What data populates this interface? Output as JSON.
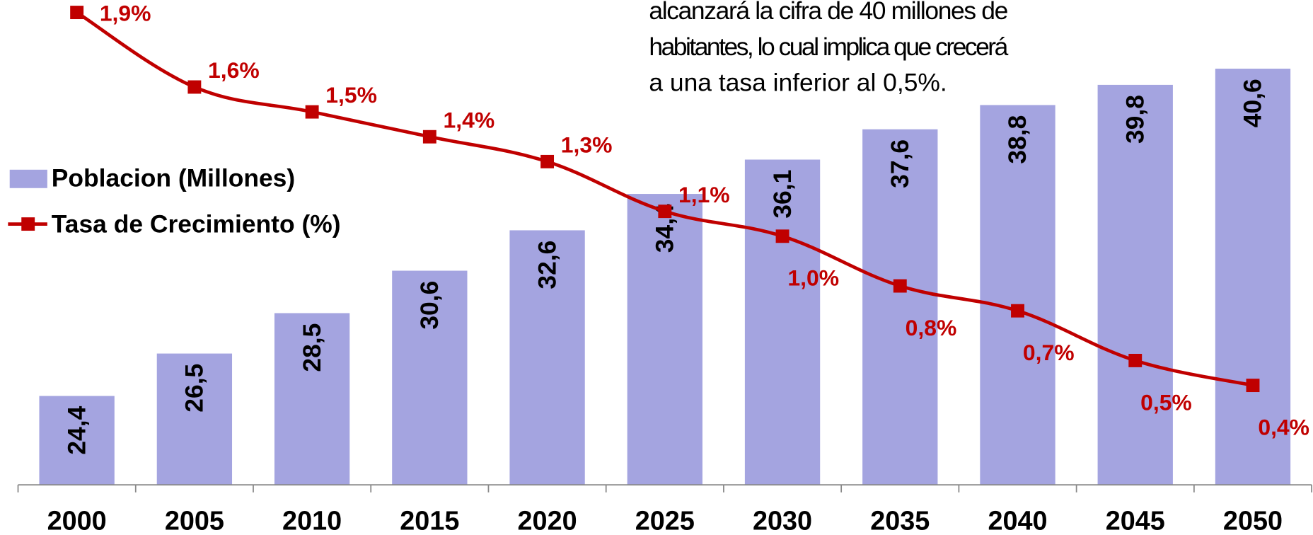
{
  "chart_data": {
    "type": "bar",
    "annotation": [
      "alcanzará la cifra de 40 millones de",
      "habitantes, lo cual implica que crecerá",
      "a una tasa inferior al 0,5%."
    ],
    "categories": [
      "2000",
      "2005",
      "2010",
      "2015",
      "2020",
      "2025",
      "2030",
      "2035",
      "2040",
      "2045",
      "2050"
    ],
    "series": [
      {
        "name": "Poblacion (Millones)",
        "type": "bar",
        "color": "#a4a4e0",
        "values": [
          24.4,
          26.5,
          28.5,
          30.6,
          32.6,
          34.4,
          36.1,
          37.6,
          38.8,
          39.8,
          40.6
        ],
        "value_labels": [
          "24,4",
          "26,5",
          "28,5",
          "30,6",
          "32,6",
          "34,4",
          "36,1",
          "37,6",
          "38,8",
          "39,8",
          "40,6"
        ]
      },
      {
        "name": "Tasa de Crecimiento (%)",
        "type": "line",
        "axis": "y2",
        "color": "#c00000",
        "values": [
          1.9,
          1.6,
          1.5,
          1.4,
          1.3,
          1.1,
          1.0,
          0.8,
          0.7,
          0.5,
          0.4
        ],
        "value_labels": [
          "1,9%",
          "1,6%",
          "1,5%",
          "1,4%",
          "1,3%",
          "1,1%",
          "1,0%",
          "0,8%",
          "0,7%",
          "0,5%",
          "0,4%"
        ]
      }
    ],
    "ylim": [
      20,
      44
    ],
    "y2lim": [
      0,
      1.95
    ],
    "legend": "left"
  }
}
